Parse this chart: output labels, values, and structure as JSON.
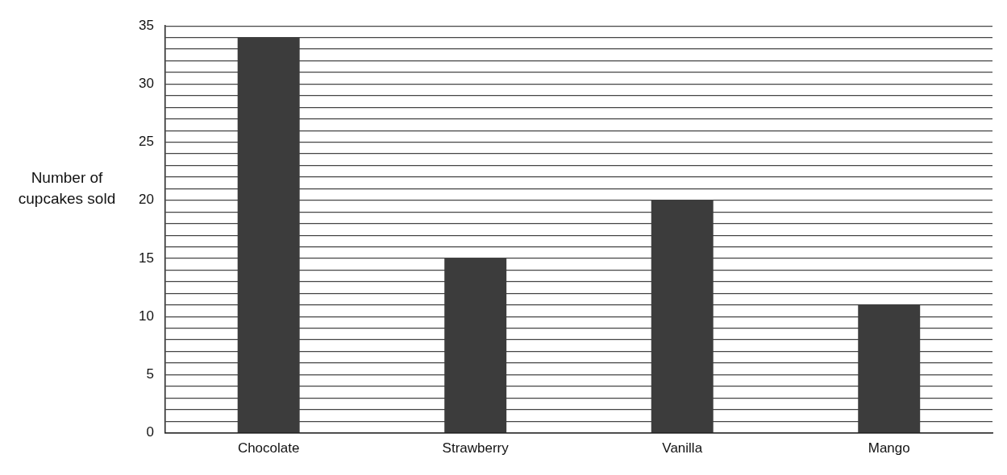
{
  "chart_data": {
    "type": "bar",
    "ylabel": "Number of cupcakes sold",
    "categories": [
      "Chocolate",
      "Strawberry",
      "Vanilla",
      "Mango"
    ],
    "values": [
      34,
      15,
      20,
      11
    ],
    "color": "#3c3c3c",
    "ylim": [
      0,
      35
    ],
    "yticks": [
      0,
      {
        "value": 1,
        "label": null
      },
      {
        "value": 2,
        "label": null
      },
      {
        "value": 3,
        "label": null
      },
      {
        "value": 4,
        "label": null
      },
      5,
      {
        "value": 6,
        "label": null
      },
      {
        "value": 7,
        "label": null
      },
      {
        "value": 8,
        "label": null
      },
      {
        "value": 9,
        "label": null
      },
      10,
      {
        "value": 11,
        "label": null
      },
      {
        "value": 12,
        "label": null
      },
      {
        "value": 13,
        "label": null
      },
      {
        "value": 14,
        "label": null
      },
      15,
      {
        "value": 16,
        "label": null
      },
      {
        "value": 17,
        "label": null
      },
      {
        "value": 18,
        "label": null
      },
      {
        "value": 19,
        "label": null
      },
      20,
      {
        "value": 21,
        "label": null
      },
      {
        "value": 22,
        "label": null
      },
      {
        "value": 23,
        "label": null
      },
      {
        "value": 24,
        "label": null
      },
      25,
      {
        "value": 26,
        "label": null
      },
      {
        "value": 27,
        "label": null
      },
      {
        "value": 28,
        "label": null
      },
      {
        "value": 29,
        "label": null
      },
      30,
      {
        "value": 31,
        "label": null
      },
      {
        "value": 32,
        "label": null
      },
      {
        "value": 33,
        "label": null
      },
      {
        "value": 34,
        "label": null
      },
      35
    ],
    "grid": "y"
  }
}
